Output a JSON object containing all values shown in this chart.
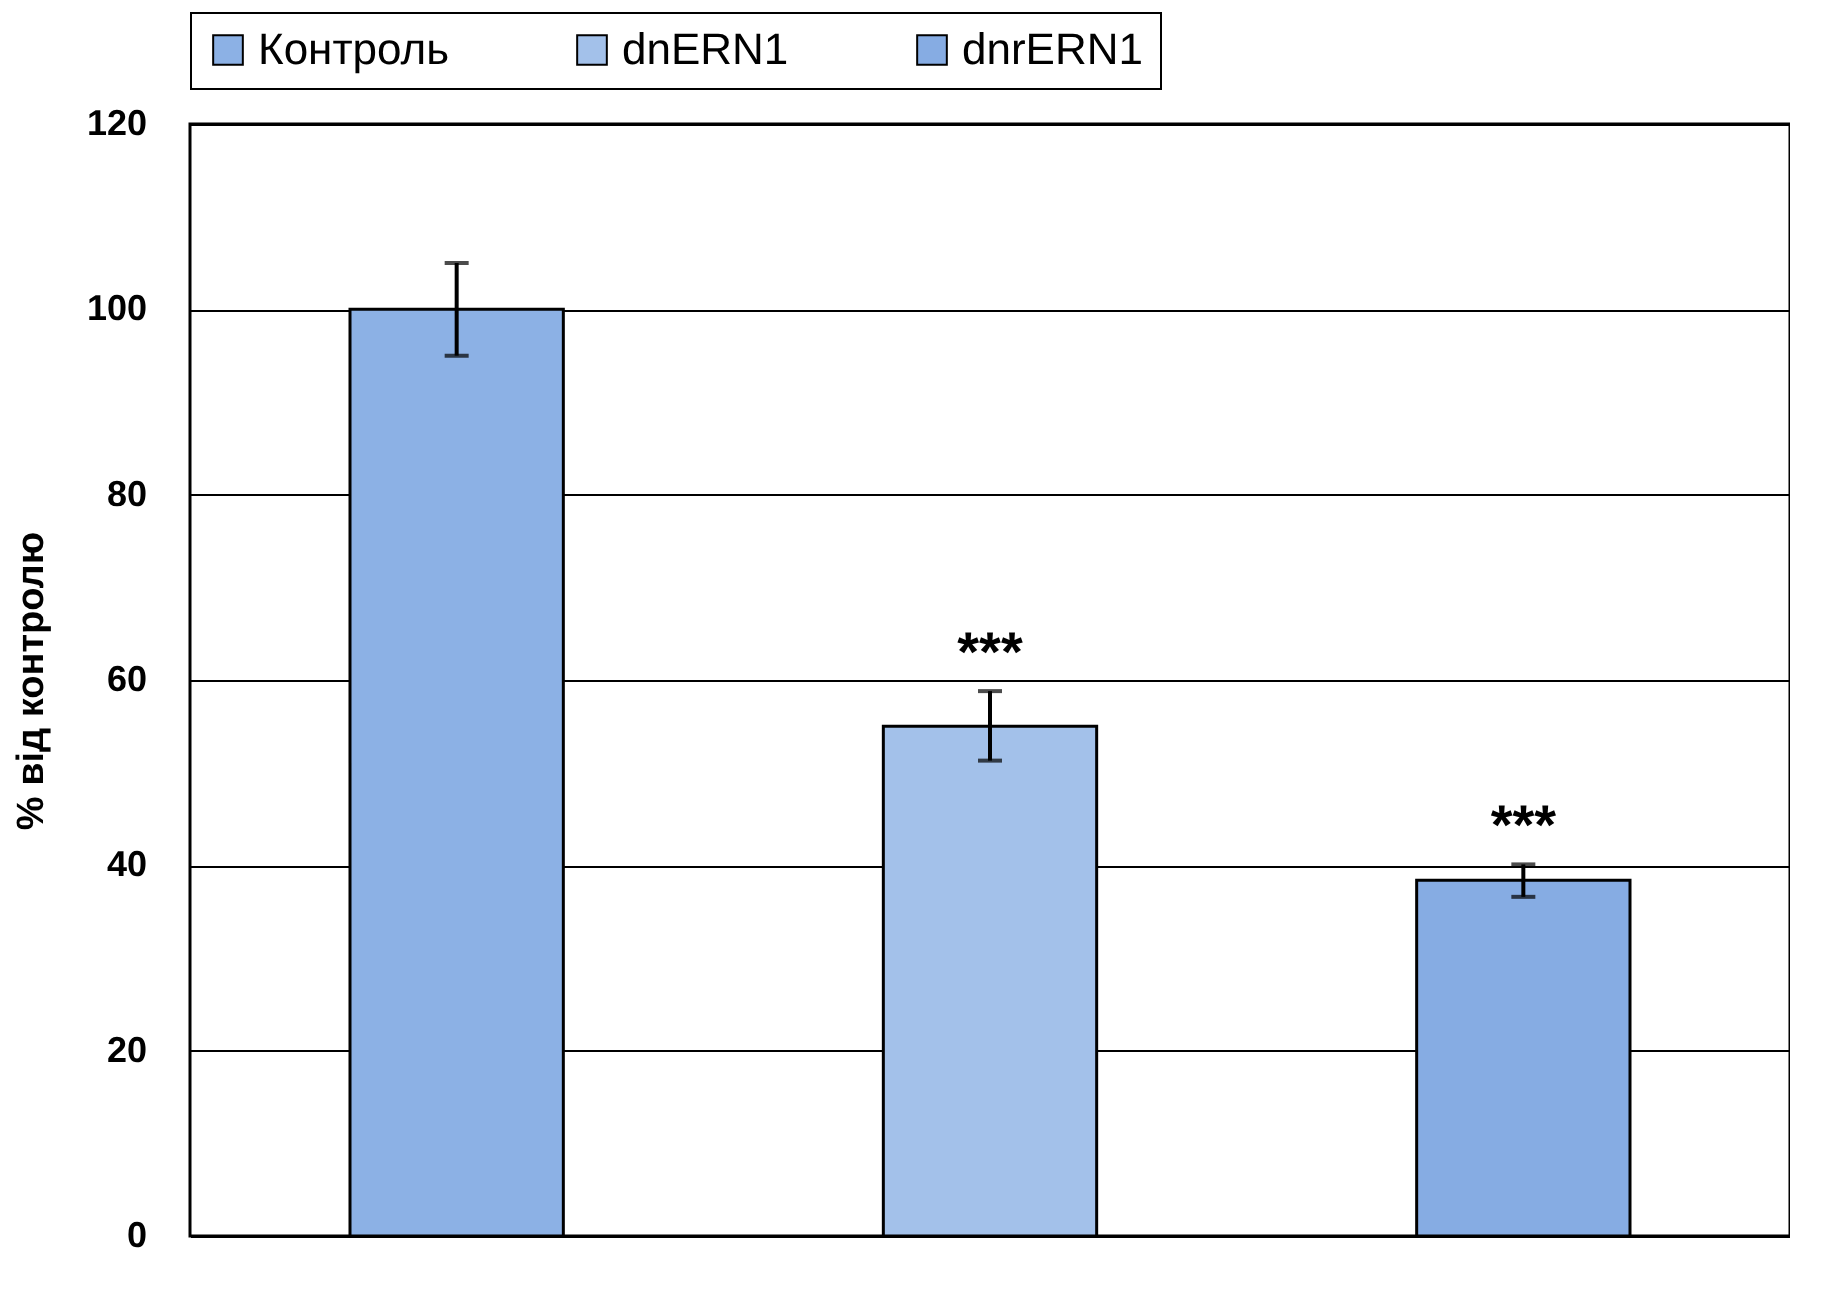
{
  "chart_data": {
    "type": "bar",
    "ylabel": "% від контролю",
    "categories": [
      null,
      null,
      null
    ],
    "series": [
      {
        "name": "Контроль",
        "color": "#8cb1e5",
        "values": [
          100,
          null,
          null
        ],
        "errors": [
          5,
          null,
          null
        ]
      },
      {
        "name": "dnERN1",
        "color": "#a3c1ea",
        "values": [
          null,
          55,
          null
        ],
        "errors": [
          null,
          [
            51.3,
            58.8
          ],
          null
        ]
      },
      {
        "name": "dnrERN1",
        "color": "#86ace3",
        "values": [
          null,
          null,
          38.4
        ],
        "errors": [
          null,
          null,
          [
            36.6,
            40.1
          ]
        ]
      }
    ],
    "ylim": [
      0,
      120
    ],
    "yticks": [
      0,
      20,
      40,
      60,
      80,
      100,
      120
    ],
    "grid": "y",
    "legend": "top",
    "tick_labels": "y",
    "annotations": [
      "***",
      "***"
    ]
  }
}
